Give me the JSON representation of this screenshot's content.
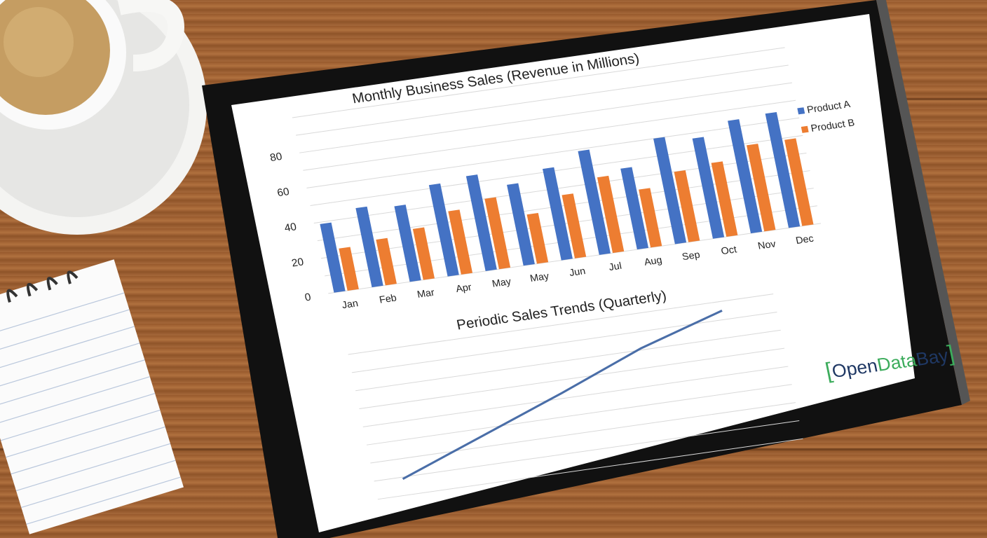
{
  "colors": {
    "product_a": "#4472c4",
    "product_b": "#ed7d31",
    "line": "#4a6ea8",
    "logo_dark": "#1f3864",
    "logo_green": "#3cac5c"
  },
  "logo": {
    "part1": "Open",
    "part2": "Data",
    "part3": "Bay"
  },
  "chart_data": [
    {
      "type": "bar",
      "title": "Monthly Business Sales (Revenue in Millions)",
      "categories": [
        "Jan",
        "Feb",
        "Mar",
        "Apr",
        "May",
        "May",
        "Jun",
        "Jul",
        "Aug",
        "Sep",
        "Oct",
        "Nov",
        "Dec"
      ],
      "series": [
        {
          "name": "Product A",
          "values": [
            39,
            45,
            43,
            52,
            54,
            46,
            52,
            59,
            46,
            60,
            57,
            64,
            65
          ]
        },
        {
          "name": "Product B",
          "values": [
            24,
            26,
            29,
            36,
            40,
            28,
            36,
            43,
            33,
            40,
            42,
            49,
            49
          ]
        }
      ],
      "yticks": [
        0,
        20,
        40,
        60,
        80
      ],
      "ylim": [
        0,
        100
      ],
      "grid": true,
      "legend": "right"
    },
    {
      "type": "line",
      "title": "Periodic Sales Trends (Quarterly)",
      "x": [
        1,
        2,
        3,
        4,
        5
      ],
      "series": [
        {
          "values": [
            0.9,
            2.6,
            4.3,
            6.1,
            7.5
          ]
        }
      ],
      "ylim": [
        0,
        8
      ],
      "grid": true
    }
  ]
}
